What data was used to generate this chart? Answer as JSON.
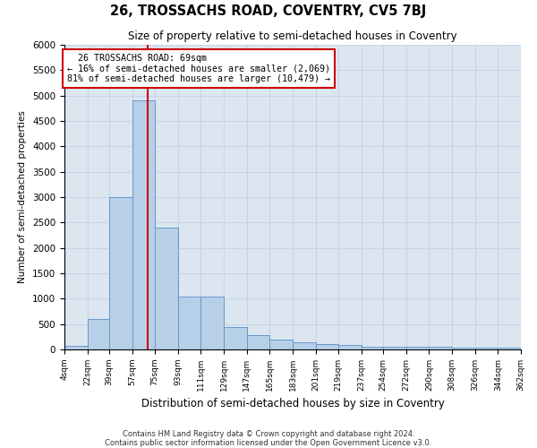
{
  "title": "26, TROSSACHS ROAD, COVENTRY, CV5 7BJ",
  "subtitle": "Size of property relative to semi-detached houses in Coventry",
  "xlabel": "Distribution of semi-detached houses by size in Coventry",
  "ylabel": "Number of semi-detached properties",
  "property_size": 69,
  "property_label": "26 TROSSACHS ROAD: 69sqm",
  "smaller_pct": "16%",
  "smaller_n": "2,069",
  "larger_pct": "81%",
  "larger_n": "10,479",
  "bin_edges": [
    4,
    22,
    39,
    57,
    75,
    93,
    111,
    129,
    147,
    165,
    183,
    201,
    219,
    237,
    254,
    272,
    290,
    308,
    326,
    344,
    362
  ],
  "bin_counts": [
    70,
    600,
    3000,
    4900,
    2400,
    1050,
    1050,
    450,
    280,
    190,
    140,
    100,
    90,
    60,
    55,
    50,
    45,
    40,
    38,
    35
  ],
  "bar_color": "#b8cfe8",
  "bar_edge_color": "#6699cc",
  "vline_color": "#cc0000",
  "annotation_box_color": "#cc0000",
  "grid_color": "#c8d4e4",
  "background_color": "#dce6f0",
  "footer_line1": "Contains HM Land Registry data © Crown copyright and database right 2024.",
  "footer_line2": "Contains public sector information licensed under the Open Government Licence v3.0.",
  "ylim": [
    0,
    6000
  ],
  "yticks": [
    0,
    500,
    1000,
    1500,
    2000,
    2500,
    3000,
    3500,
    4000,
    4500,
    5000,
    5500,
    6000
  ]
}
